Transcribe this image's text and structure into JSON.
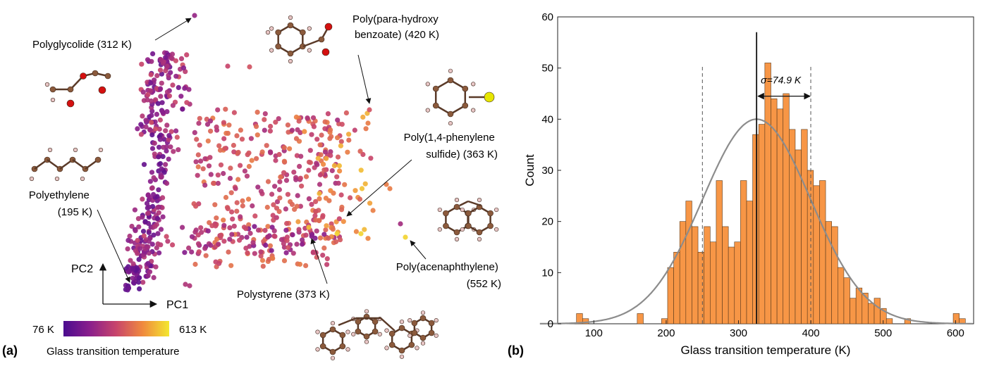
{
  "figure": {
    "panel_a_label": "(a)",
    "panel_b_label": "(b)"
  },
  "chart_data": [
    {
      "type": "scatter",
      "title": "",
      "xlabel": "PC1",
      "ylabel": "PC2",
      "x_axis_label": "PC1",
      "y_axis_label": "PC2",
      "colorbar": {
        "label": "Glass transition temperature",
        "min_label": "76 K",
        "max_label": "613 K",
        "min": 76,
        "max": 613,
        "colors": [
          "#4b0c8f",
          "#8a1f8c",
          "#c8456b",
          "#f08a3e",
          "#f3e72f"
        ]
      },
      "annotations": [
        {
          "key": "polyglycolide",
          "lines": [
            "Polyglycolide (312 K)"
          ],
          "tg": 312
        },
        {
          "key": "phb",
          "lines": [
            "Poly(para-hydroxy",
            "benzoate) (420 K)"
          ],
          "tg": 420
        },
        {
          "key": "pps",
          "lines": [
            "Poly(1,4-phenylene",
            "sulfide) (363 K)"
          ],
          "tg": 363
        },
        {
          "key": "polyethylene",
          "lines": [
            "Polyethylene",
            "(195 K)"
          ],
          "tg": 195
        },
        {
          "key": "polystyrene",
          "lines": [
            "Polystyrene (373 K)"
          ],
          "tg": 373
        },
        {
          "key": "pacn",
          "lines": [
            "Poly(acenaphthylene)",
            "(552 K)"
          ],
          "tg": 552
        }
      ]
    },
    {
      "type": "bar",
      "title": "",
      "xlabel": "Glass transition temperature (K)",
      "ylabel": "Count",
      "xlim": [
        50,
        625
      ],
      "ylim": [
        0,
        60
      ],
      "xticks": [
        100,
        200,
        300,
        400,
        500,
        600
      ],
      "yticks": [
        0,
        10,
        20,
        30,
        40,
        50,
        60
      ],
      "bin_width": 8.4,
      "bin_start": 76,
      "counts": [
        2,
        1,
        0,
        0,
        0,
        0,
        0,
        0,
        0,
        0,
        2,
        0,
        0,
        0,
        1,
        11,
        14,
        20,
        24,
        19,
        14,
        19,
        16,
        28,
        19,
        15,
        16,
        28,
        24,
        37,
        39,
        51,
        44,
        42,
        45,
        38,
        34,
        38,
        30,
        27,
        28,
        20,
        19,
        11,
        9,
        5,
        7,
        6,
        4,
        5,
        3,
        1,
        0,
        0,
        1,
        0,
        0,
        0,
        0,
        0,
        0,
        0,
        2,
        1
      ],
      "fit_curve": {
        "type": "gaussian",
        "mean": 325,
        "sigma": 74.9,
        "peak": 40
      },
      "mean_line": 325,
      "sigma_lines": [
        250.1,
        399.9
      ],
      "sigma_label": "σ=74.9 K",
      "bar_color": "#f79646",
      "curve_color": "#8c8c8c"
    }
  ]
}
